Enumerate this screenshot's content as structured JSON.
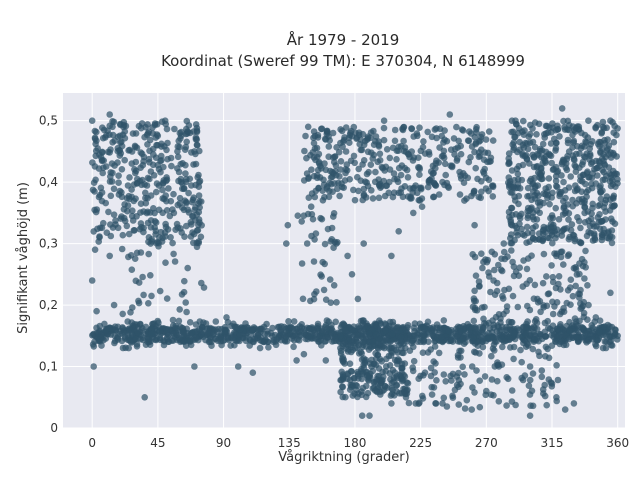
{
  "chart_data": {
    "type": "scatter",
    "title": "År 1979 - 2019",
    "subtitle": "Koordinat (Sweref 99 TM): E 370304, N 6148999",
    "xlabel": "Vågriktning (grader)",
    "ylabel": "Signifikant våghöjd (m)",
    "xlim": [
      -20,
      365
    ],
    "ylim": [
      0,
      0.545
    ],
    "xticks": [
      0,
      45,
      90,
      135,
      180,
      225,
      270,
      315,
      360
    ],
    "xtick_labels": [
      "0",
      "45",
      "90",
      "135",
      "180",
      "225",
      "270",
      "315",
      "360"
    ],
    "yticks": [
      0,
      0.1,
      0.2,
      0.3,
      0.4,
      0.5
    ],
    "ytick_labels": [
      "0",
      "0,1",
      "0,2",
      "0,3",
      "0,4",
      "0,5"
    ],
    "grid": true,
    "point_color": "#2f5369",
    "background_color": "#e8e9f1",
    "clusters": [
      {
        "x_range": [
          0,
          360
        ],
        "y_range": [
          0.14,
          0.165
        ],
        "count": 900
      },
      {
        "x_range": [
          0,
          360
        ],
        "y_range": [
          0.13,
          0.175
        ],
        "count": 300
      },
      {
        "x_range": [
          0,
          75
        ],
        "y_range": [
          0.3,
          0.5
        ],
        "count": 380
      },
      {
        "x_range": [
          145,
          275
        ],
        "y_range": [
          0.37,
          0.49
        ],
        "count": 380
      },
      {
        "x_range": [
          285,
          360
        ],
        "y_range": [
          0.3,
          0.5
        ],
        "count": 520
      },
      {
        "x_range": [
          170,
          215
        ],
        "y_range": [
          0.05,
          0.17
        ],
        "count": 280
      },
      {
        "x_range": [
          215,
          320
        ],
        "y_range": [
          0.03,
          0.13
        ],
        "count": 120
      },
      {
        "x_range": [
          260,
          340
        ],
        "y_range": [
          0.17,
          0.29
        ],
        "count": 140
      },
      {
        "x_range": [
          20,
          80
        ],
        "y_range": [
          0.17,
          0.3
        ],
        "count": 40
      },
      {
        "x_range": [
          140,
          170
        ],
        "y_range": [
          0.2,
          0.35
        ],
        "count": 40
      }
    ],
    "points": [
      [
        1,
        0.1
      ],
      [
        36,
        0.05
      ],
      [
        0,
        0.24
      ],
      [
        185,
        0.02
      ],
      [
        190,
        0.02
      ],
      [
        324,
        0.03
      ],
      [
        300,
        0.02
      ],
      [
        240,
        0.04
      ],
      [
        260,
        0.03
      ],
      [
        330,
        0.04
      ],
      [
        100,
        0.1
      ],
      [
        110,
        0.09
      ],
      [
        140,
        0.11
      ],
      [
        70,
        0.1
      ],
      [
        355,
        0.22
      ],
      [
        345,
        0.18
      ],
      [
        15,
        0.2
      ],
      [
        3,
        0.19
      ],
      [
        2,
        0.29
      ],
      [
        5,
        0.31
      ],
      [
        12,
        0.28
      ],
      [
        40,
        0.3
      ],
      [
        46,
        0.31
      ],
      [
        56,
        0.35
      ],
      [
        63,
        0.39
      ],
      [
        70,
        0.45
      ],
      [
        72,
        0.46
      ],
      [
        133,
        0.3
      ],
      [
        134,
        0.33
      ],
      [
        150,
        0.36
      ],
      [
        155,
        0.39
      ],
      [
        160,
        0.42
      ],
      [
        165,
        0.44
      ],
      [
        175,
        0.28
      ],
      [
        178,
        0.25
      ],
      [
        182,
        0.21
      ],
      [
        186,
        0.3
      ],
      [
        205,
        0.28
      ],
      [
        210,
        0.32
      ],
      [
        220,
        0.35
      ],
      [
        226,
        0.36
      ],
      [
        240,
        0.4
      ],
      [
        255,
        0.37
      ],
      [
        262,
        0.33
      ],
      [
        268,
        0.27
      ],
      [
        275,
        0.24
      ],
      [
        282,
        0.3
      ],
      [
        288,
        0.27
      ],
      [
        295,
        0.23
      ],
      [
        305,
        0.21
      ],
      [
        318,
        0.28
      ],
      [
        322,
        0.32
      ],
      [
        330,
        0.26
      ],
      [
        340,
        0.2
      ],
      [
        350,
        0.13
      ],
      [
        360,
        0.15
      ],
      [
        145,
        0.12
      ],
      [
        160,
        0.11
      ],
      [
        170,
        0.13
      ],
      [
        0,
        0.5
      ],
      [
        12,
        0.51
      ],
      [
        50,
        0.5
      ],
      [
        60,
        0.48
      ],
      [
        148,
        0.49
      ],
      [
        200,
        0.5
      ],
      [
        245,
        0.51
      ],
      [
        290,
        0.5
      ],
      [
        322,
        0.52
      ],
      [
        355,
        0.5
      ],
      [
        175,
        0.08
      ],
      [
        195,
        0.06
      ],
      [
        205,
        0.04
      ],
      [
        215,
        0.05
      ],
      [
        228,
        0.09
      ],
      [
        250,
        0.07
      ],
      [
        270,
        0.06
      ],
      [
        285,
        0.08
      ],
      [
        300,
        0.1
      ],
      [
        310,
        0.07
      ],
      [
        318,
        0.05
      ],
      [
        25,
        0.13
      ],
      [
        80,
        0.14
      ],
      [
        120,
        0.14
      ],
      [
        92,
        0.18
      ],
      [
        105,
        0.17
      ],
      [
        115,
        0.13
      ]
    ]
  }
}
